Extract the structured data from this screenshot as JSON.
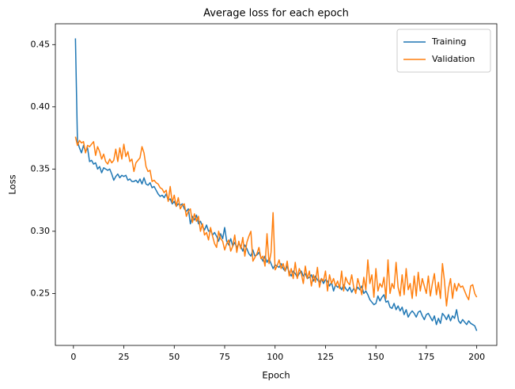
{
  "chart_data": {
    "type": "line",
    "title": "Average loss for each epoch",
    "xlabel": "Epoch",
    "ylabel": "Loss",
    "x": [
      1,
      2,
      3,
      4,
      5,
      6,
      7,
      8,
      9,
      10,
      11,
      12,
      13,
      14,
      15,
      16,
      17,
      18,
      19,
      20,
      21,
      22,
      23,
      24,
      25,
      26,
      27,
      28,
      29,
      30,
      31,
      32,
      33,
      34,
      35,
      36,
      37,
      38,
      39,
      40,
      41,
      42,
      43,
      44,
      45,
      46,
      47,
      48,
      49,
      50,
      51,
      52,
      53,
      54,
      55,
      56,
      57,
      58,
      59,
      60,
      61,
      62,
      63,
      64,
      65,
      66,
      67,
      68,
      69,
      70,
      71,
      72,
      73,
      74,
      75,
      76,
      77,
      78,
      79,
      80,
      81,
      82,
      83,
      84,
      85,
      86,
      87,
      88,
      89,
      90,
      91,
      92,
      93,
      94,
      95,
      96,
      97,
      98,
      99,
      100,
      101,
      102,
      103,
      104,
      105,
      106,
      107,
      108,
      109,
      110,
      111,
      112,
      113,
      114,
      115,
      116,
      117,
      118,
      119,
      120,
      121,
      122,
      123,
      124,
      125,
      126,
      127,
      128,
      129,
      130,
      131,
      132,
      133,
      134,
      135,
      136,
      137,
      138,
      139,
      140,
      141,
      142,
      143,
      144,
      145,
      146,
      147,
      148,
      149,
      150,
      151,
      152,
      153,
      154,
      155,
      156,
      157,
      158,
      159,
      160,
      161,
      162,
      163,
      164,
      165,
      166,
      167,
      168,
      169,
      170,
      171,
      172,
      173,
      174,
      175,
      176,
      177,
      178,
      179,
      180,
      181,
      182,
      183,
      184,
      185,
      186,
      187,
      188,
      189,
      190,
      191,
      192,
      193,
      194,
      195,
      196,
      197,
      198,
      199,
      200
    ],
    "series": [
      {
        "name": "Training",
        "color": "#1f77b4",
        "values": [
          0.455,
          0.372,
          0.367,
          0.363,
          0.369,
          0.364,
          0.367,
          0.356,
          0.357,
          0.354,
          0.355,
          0.35,
          0.352,
          0.347,
          0.351,
          0.35,
          0.349,
          0.35,
          0.346,
          0.341,
          0.344,
          0.346,
          0.343,
          0.345,
          0.344,
          0.345,
          0.341,
          0.342,
          0.34,
          0.34,
          0.341,
          0.339,
          0.342,
          0.338,
          0.343,
          0.338,
          0.337,
          0.339,
          0.335,
          0.336,
          0.333,
          0.33,
          0.328,
          0.329,
          0.327,
          0.33,
          0.325,
          0.326,
          0.322,
          0.324,
          0.32,
          0.322,
          0.321,
          0.322,
          0.318,
          0.316,
          0.318,
          0.306,
          0.312,
          0.309,
          0.313,
          0.306,
          0.308,
          0.304,
          0.301,
          0.305,
          0.3,
          0.301,
          0.297,
          0.299,
          0.296,
          0.292,
          0.298,
          0.294,
          0.303,
          0.292,
          0.289,
          0.294,
          0.288,
          0.291,
          0.287,
          0.29,
          0.288,
          0.284,
          0.289,
          0.286,
          0.282,
          0.28,
          0.285,
          0.28,
          0.281,
          0.283,
          0.279,
          0.276,
          0.28,
          0.275,
          0.278,
          0.274,
          0.27,
          0.273,
          0.272,
          0.271,
          0.274,
          0.27,
          0.268,
          0.272,
          0.267,
          0.264,
          0.268,
          0.266,
          0.263,
          0.266,
          0.268,
          0.264,
          0.266,
          0.262,
          0.263,
          0.265,
          0.26,
          0.264,
          0.261,
          0.259,
          0.262,
          0.258,
          0.261,
          0.26,
          0.256,
          0.259,
          0.252,
          0.257,
          0.255,
          0.256,
          0.253,
          0.257,
          0.254,
          0.252,
          0.255,
          0.251,
          0.254,
          0.252,
          0.255,
          0.253,
          0.256,
          0.25,
          0.252,
          0.249,
          0.245,
          0.243,
          0.241,
          0.242,
          0.248,
          0.244,
          0.247,
          0.249,
          0.243,
          0.244,
          0.239,
          0.238,
          0.242,
          0.237,
          0.24,
          0.236,
          0.239,
          0.233,
          0.237,
          0.231,
          0.234,
          0.236,
          0.234,
          0.231,
          0.235,
          0.236,
          0.232,
          0.229,
          0.233,
          0.234,
          0.231,
          0.228,
          0.232,
          0.225,
          0.23,
          0.226,
          0.234,
          0.232,
          0.229,
          0.233,
          0.228,
          0.232,
          0.23,
          0.237,
          0.228,
          0.226,
          0.229,
          0.227,
          0.225,
          0.228,
          0.226,
          0.225,
          0.224,
          0.22
        ]
      },
      {
        "name": "Validation",
        "color": "#ff7f0e",
        "values": [
          0.376,
          0.369,
          0.373,
          0.371,
          0.372,
          0.363,
          0.369,
          0.368,
          0.37,
          0.372,
          0.361,
          0.368,
          0.364,
          0.358,
          0.362,
          0.356,
          0.354,
          0.358,
          0.355,
          0.357,
          0.366,
          0.356,
          0.367,
          0.358,
          0.37,
          0.36,
          0.364,
          0.356,
          0.358,
          0.348,
          0.355,
          0.357,
          0.359,
          0.368,
          0.363,
          0.352,
          0.348,
          0.349,
          0.34,
          0.341,
          0.339,
          0.338,
          0.335,
          0.334,
          0.331,
          0.333,
          0.324,
          0.336,
          0.323,
          0.329,
          0.32,
          0.327,
          0.318,
          0.321,
          0.322,
          0.312,
          0.316,
          0.318,
          0.307,
          0.314,
          0.308,
          0.312,
          0.3,
          0.306,
          0.297,
          0.299,
          0.293,
          0.303,
          0.296,
          0.29,
          0.287,
          0.3,
          0.294,
          0.292,
          0.285,
          0.29,
          0.293,
          0.284,
          0.288,
          0.297,
          0.283,
          0.292,
          0.286,
          0.295,
          0.28,
          0.291,
          0.296,
          0.3,
          0.276,
          0.279,
          0.282,
          0.287,
          0.278,
          0.28,
          0.272,
          0.298,
          0.274,
          0.283,
          0.315,
          0.269,
          0.272,
          0.277,
          0.27,
          0.274,
          0.268,
          0.276,
          0.264,
          0.27,
          0.262,
          0.275,
          0.262,
          0.27,
          0.266,
          0.258,
          0.272,
          0.262,
          0.268,
          0.256,
          0.265,
          0.259,
          0.271,
          0.255,
          0.262,
          0.26,
          0.268,
          0.252,
          0.265,
          0.258,
          0.262,
          0.256,
          0.26,
          0.254,
          0.268,
          0.252,
          0.263,
          0.259,
          0.257,
          0.265,
          0.255,
          0.25,
          0.262,
          0.256,
          0.249,
          0.263,
          0.253,
          0.277,
          0.258,
          0.265,
          0.247,
          0.27,
          0.252,
          0.258,
          0.255,
          0.263,
          0.246,
          0.277,
          0.25,
          0.258,
          0.254,
          0.275,
          0.255,
          0.248,
          0.265,
          0.249,
          0.27,
          0.253,
          0.258,
          0.246,
          0.264,
          0.248,
          0.267,
          0.252,
          0.262,
          0.256,
          0.25,
          0.264,
          0.248,
          0.258,
          0.266,
          0.249,
          0.259,
          0.246,
          0.274,
          0.26,
          0.24,
          0.254,
          0.262,
          0.246,
          0.258,
          0.252,
          0.258,
          0.255,
          0.256,
          0.252,
          0.248,
          0.245,
          0.256,
          0.257,
          0.25,
          0.247
        ]
      }
    ],
    "xlim": [
      -8.95,
      209.95
    ],
    "ylim": [
      0.20825,
      0.46675
    ],
    "xticks": [
      0,
      25,
      50,
      75,
      100,
      125,
      150,
      175,
      200
    ],
    "yticks": [
      0.25,
      {
        "value": 0.3,
        "label": "0.30"
      },
      0.35,
      {
        "value": 0.4,
        "label": "0.40"
      },
      0.45
    ],
    "legend": "upper right"
  }
}
